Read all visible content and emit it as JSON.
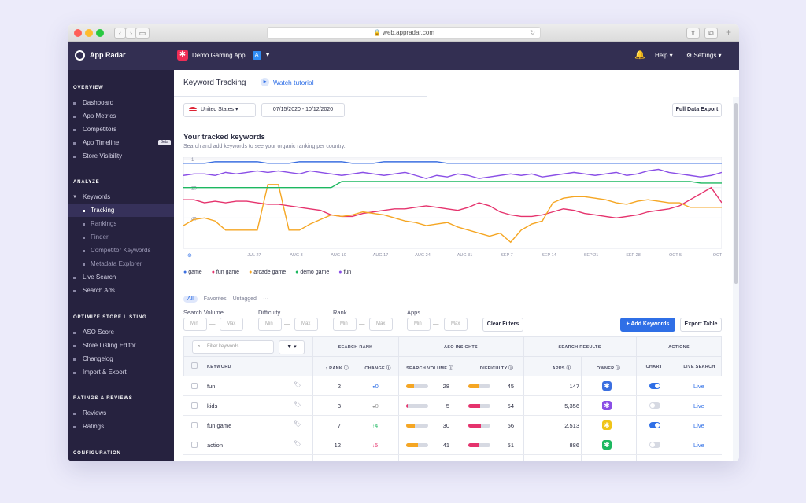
{
  "browser": {
    "url": "web.appradar.com"
  },
  "brand": {
    "name": "App Radar"
  },
  "app_selector": {
    "name": "Demo Gaming App"
  },
  "topbar": {
    "help": "Help",
    "settings": "Settings"
  },
  "sidebar": {
    "overview": {
      "title": "OVERVIEW",
      "items": [
        "Dashboard",
        "App Metrics",
        "Competitors",
        "App Timeline",
        "Store Visibility"
      ],
      "beta": "Beta"
    },
    "analyze": {
      "title": "ANALYZE",
      "items": [
        "Keywords",
        "Tracking",
        "Rankings",
        "Finder",
        "Competitor Keywords",
        "Metadata Explorer",
        "Live Search",
        "Search Ads"
      ]
    },
    "optimize": {
      "title": "OPTIMIZE STORE LISTING",
      "items": [
        "ASO Score",
        "Store Listing Editor",
        "Changelog",
        "Import & Export"
      ]
    },
    "ratings": {
      "title": "RATINGS & REVIEWS",
      "items": [
        "Reviews",
        "Ratings"
      ]
    },
    "config": {
      "title": "CONFIGURATION"
    }
  },
  "header": {
    "title": "Keyword Tracking",
    "tutorial": "Watch tutorial"
  },
  "filters": {
    "country": "United States",
    "date_range": "07/15/2020 - 10/12/2020",
    "export": "Full Data Export"
  },
  "section": {
    "title": "Your tracked keywords",
    "subtitle": "Search and add keywords to see your organic ranking per country."
  },
  "chart_data": {
    "type": "line",
    "x_ticks": [
      "JUL 27",
      "AUG 3",
      "AUG 10",
      "AUG 17",
      "AUG 24",
      "AUG 31",
      "SEP 7",
      "SEP 14",
      "SEP 21",
      "SEP 28",
      "OCT 5",
      "OCT"
    ],
    "y_ticks": [
      1,
      20,
      40
    ],
    "ylim": [
      1,
      60
    ],
    "y_inverted": true,
    "series": [
      {
        "name": "game",
        "color": "#3b6fe0",
        "values": [
          4,
          4,
          4,
          3,
          3,
          3,
          3,
          3,
          4,
          4,
          4,
          3,
          3,
          3,
          3,
          3,
          4,
          4,
          4,
          3,
          3,
          3,
          3,
          3,
          3,
          4,
          4,
          4,
          4,
          4,
          4,
          4,
          4,
          4,
          4,
          4,
          4,
          4,
          4,
          4,
          4,
          4,
          4,
          4,
          4,
          4,
          4,
          4,
          4,
          4,
          4,
          4
        ]
      },
      {
        "name": "fun game",
        "color": "#e5336d",
        "values": [
          28,
          28,
          30,
          29,
          30,
          29,
          29,
          30,
          31,
          31,
          32,
          33,
          34,
          35,
          38,
          39,
          39,
          37,
          36,
          35,
          34,
          34,
          33,
          32,
          33,
          34,
          35,
          33,
          30,
          32,
          36,
          38,
          39,
          39,
          38,
          36,
          34,
          35,
          37,
          38,
          39,
          40,
          39,
          38,
          36,
          35,
          34,
          32,
          28,
          24,
          20,
          30
        ]
      },
      {
        "name": "arcade game",
        "color": "#f5a623",
        "values": [
          45,
          41,
          40,
          42,
          48,
          48,
          48,
          48,
          18,
          18,
          48,
          48,
          44,
          41,
          38,
          39,
          38,
          36,
          37,
          38,
          40,
          42,
          43,
          45,
          44,
          43,
          46,
          48,
          50,
          52,
          50,
          56,
          48,
          44,
          42,
          30,
          27,
          26,
          26,
          27,
          28,
          30,
          31,
          29,
          28,
          29,
          30,
          30,
          33,
          33,
          33,
          33
        ]
      },
      {
        "name": "demo game",
        "color": "#1db860",
        "values": [
          20,
          20,
          20,
          20,
          20,
          20,
          20,
          20,
          20,
          20,
          20,
          20,
          20,
          20,
          20,
          16,
          16,
          16,
          16,
          16,
          16,
          16,
          16,
          16,
          16,
          16,
          16,
          16,
          16,
          16,
          16,
          16,
          16,
          16,
          16,
          16,
          16,
          16,
          16,
          16,
          16,
          16,
          16,
          16,
          16,
          16,
          16,
          16,
          16,
          17,
          17,
          17
        ]
      },
      {
        "name": "fun",
        "color": "#8a4fe6",
        "values": [
          12,
          11,
          11,
          12,
          10,
          11,
          10,
          9,
          10,
          9,
          10,
          11,
          9,
          10,
          11,
          12,
          11,
          10,
          11,
          12,
          11,
          10,
          12,
          14,
          12,
          13,
          11,
          12,
          14,
          13,
          12,
          11,
          12,
          11,
          13,
          12,
          11,
          10,
          11,
          12,
          11,
          10,
          12,
          11,
          9,
          8,
          10,
          11,
          12,
          13,
          12,
          10
        ]
      }
    ]
  },
  "tabs": {
    "all": "All",
    "favorites": "Favorites",
    "untagged": "Untagged",
    "more": "···"
  },
  "filter_panel": {
    "search_volume": "Search Volume",
    "difficulty": "Difficulty",
    "rank": "Rank",
    "apps": "Apps",
    "min": "Min",
    "max": "Max",
    "dash": "—",
    "clear": "Clear Filters",
    "add_keywords": "Add Keywords",
    "export_table": "Export Table"
  },
  "table": {
    "search_placeholder": "Filter keywords",
    "groups": [
      "SEARCH RANK",
      "ASO INSIGHTS",
      "SEARCH RESULTS",
      "ACTIONS"
    ],
    "columns": [
      "KEYWORD",
      "RANK",
      "CHANGE",
      "SEARCH VOLUME",
      "DIFFICULTY",
      "APPS",
      "OWNER",
      "CHART",
      "LIVE SEARCH"
    ],
    "rows": [
      {
        "keyword": "fun",
        "rank": "2",
        "change": "0",
        "change_dir": "neutral",
        "volume": "28",
        "difficulty": "45",
        "apps": "147",
        "owner_color": "#3b6fe0",
        "chart": true,
        "live": "Live"
      },
      {
        "keyword": "kids",
        "rank": "3",
        "change": "0",
        "change_dir": "none",
        "volume": "5",
        "difficulty": "54",
        "apps": "5,356",
        "owner_color": "#8a4fe6",
        "chart": false,
        "live": "Live"
      },
      {
        "keyword": "fun game",
        "rank": "7",
        "change": "4",
        "change_dir": "up",
        "volume": "30",
        "difficulty": "56",
        "apps": "2,513",
        "owner_color": "#f0c419",
        "chart": true,
        "live": "Live"
      },
      {
        "keyword": "action",
        "rank": "12",
        "change": "5",
        "change_dir": "down",
        "volume": "41",
        "difficulty": "51",
        "apps": "886",
        "owner_color": "#1db860",
        "chart": false,
        "live": "Live"
      }
    ]
  }
}
